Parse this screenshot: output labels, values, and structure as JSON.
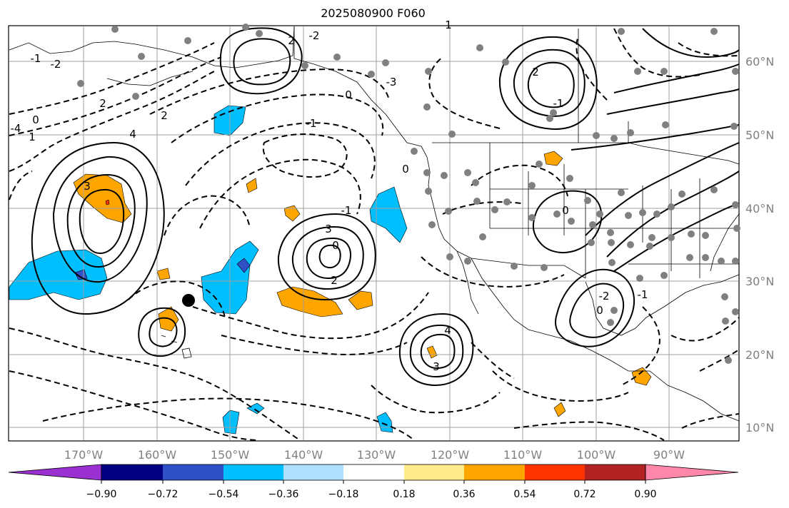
{
  "title": "2025080900 F060",
  "map": {
    "lon_ticks": [
      "170°W",
      "160°W",
      "150°W",
      "140°W",
      "130°W",
      "120°W",
      "110°W",
      "100°W",
      "90°W"
    ],
    "lat_ticks": [
      "60°N",
      "50°N",
      "40°N",
      "30°N",
      "20°N",
      "10°N"
    ],
    "extent": {
      "lon": [
        -180,
        -80
      ],
      "lat": [
        8,
        66
      ]
    },
    "grid": true
  },
  "colorbar": {
    "labels": [
      "−0.90",
      "−0.72",
      "−0.54",
      "−0.36",
      "−0.18",
      "0.18",
      "0.36",
      "0.54",
      "0.72",
      "0.90"
    ],
    "colors": [
      "#9b30d0",
      "#000080",
      "#3050c8",
      "#00bfff",
      "#b0e0ff",
      "#ffffff",
      "#ffeb8a",
      "#ffa500",
      "#ff3300",
      "#b22222",
      "#ff88aa"
    ],
    "extend": "both"
  },
  "contour_labels": [
    "3",
    "-2",
    "0",
    "-1",
    "2",
    "-3",
    "-4",
    "1",
    "4",
    "-1",
    "0",
    "2",
    "3",
    "0",
    "2",
    "-1",
    "-2",
    "2",
    "0",
    "1",
    "2",
    "-1",
    "0",
    "4",
    "3",
    "-2",
    "0",
    "-1"
  ],
  "style": {
    "positive": "#000000",
    "negative_dash": "8,5",
    "grid": "#a0a0a0",
    "stations": "#808080"
  }
}
